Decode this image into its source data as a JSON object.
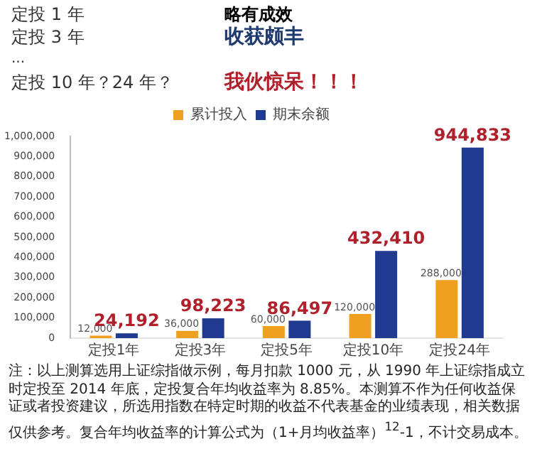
{
  "chart_data": {
    "type": "bar",
    "categories": [
      "定投1年",
      "定投3年",
      "定投5年",
      "定投10年",
      "定投24年"
    ],
    "series": [
      {
        "name": "累计投入",
        "color": "#f0a020",
        "values": [
          12000,
          36000,
          60000,
          120000,
          288000
        ],
        "value_labels": [
          "12,000",
          "36,000",
          "60,000",
          "120,000",
          "288,000"
        ]
      },
      {
        "name": "期末余额",
        "color": "#1f3a8f",
        "values": [
          24192,
          98223,
          86497,
          432410,
          944833
        ],
        "value_labels": [
          "24,192",
          "98,223",
          "86,497",
          "432,410",
          "944,833"
        ]
      }
    ],
    "ylim": [
      0,
      1000000
    ],
    "yticks": [
      0,
      {
        "value": 100000,
        "label": "100,000"
      },
      {
        "value": 200000,
        "label": "200,000"
      },
      {
        "value": 300000,
        "label": "300,000"
      },
      {
        "value": 400000,
        "label": "400,000"
      },
      {
        "value": 500000,
        "label": "500,000"
      },
      {
        "value": 600000,
        "label": "600,000"
      },
      {
        "value": 700000,
        "label": "700,000"
      },
      {
        "value": 800000,
        "label": "800,000"
      },
      {
        "value": 900000,
        "label": "900,000"
      },
      {
        "value": 1000000,
        "label": "1,000,000"
      }
    ],
    "grid": false,
    "legend": "top",
    "annotations": [
      "定投 1 年",
      "略有成效",
      "定投 3 年",
      "收获颇丰",
      "...",
      "定投 10 年？24 年？",
      "我伙惊呆！！！",
      "注：以上测算选用上证综指做示例，每月扣款 1000 元，从 1990 年上证综指成立时定投至 2014 年底，定投复合年均收益率为 8.85%。本测算不作为任何收益保证或者投资建议，所选用指数在特定时期的收益不代表基金的业绩表现，相关数据仅供参考。复合年均收益率的计算公式为（1+月均收益率）$^{12}$-1，不计交易成本。"
    ]
  }
}
